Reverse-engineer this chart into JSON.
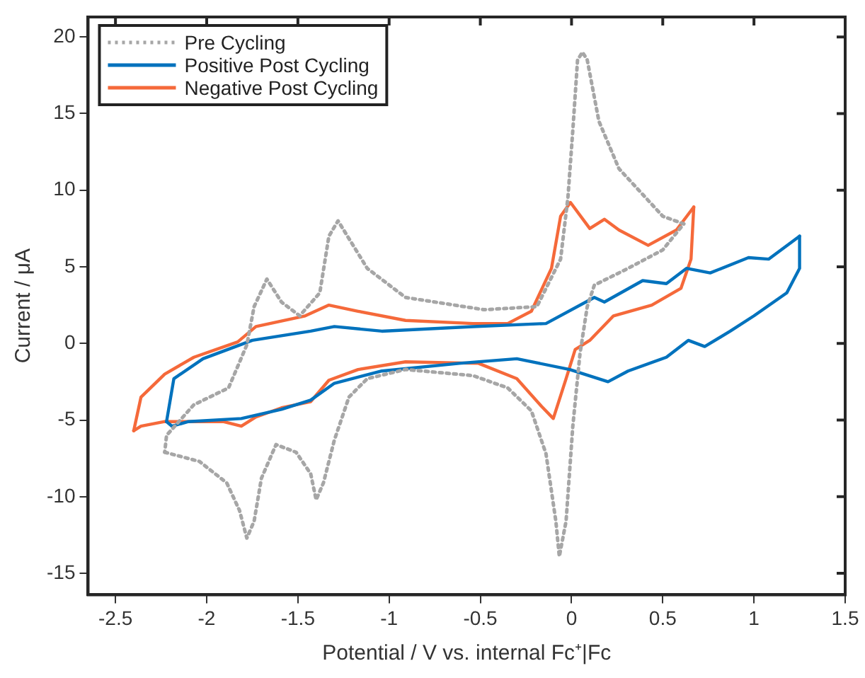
{
  "chart_data": {
    "type": "line",
    "xlabel": "Potential / V vs. internal Fc⁺|Fc",
    "ylabel": "Current / μA",
    "xlim": [
      -2.65,
      1.5
    ],
    "ylim": [
      -16.4,
      21.3
    ],
    "xticks": [
      -2.5,
      -2,
      -1.5,
      -1,
      -0.5,
      0,
      0.5,
      1,
      1.5
    ],
    "yticks": [
      -15,
      -10,
      -5,
      0,
      5,
      10,
      15,
      20
    ],
    "grid": false,
    "legend": "top left",
    "marker": "none",
    "series": [
      {
        "name": "Pre Cycling",
        "color": "#a6a6a6",
        "line_style": "dotted",
        "x": [
          -2.23,
          -2.04,
          -1.89,
          -1.82,
          -1.78,
          -1.74,
          -1.7,
          -1.62,
          -1.51,
          -1.43,
          -1.4,
          -1.36,
          -1.3,
          -1.22,
          -1.12,
          -0.91,
          -0.54,
          -0.35,
          -0.22,
          -0.14,
          -0.086,
          -0.067,
          -0.03,
          0.007,
          0.046,
          0.086,
          0.125,
          0.31,
          0.5,
          0.615
        ],
        "values": [
          -7.1,
          -7.7,
          -9.1,
          -10.9,
          -12.7,
          -11.6,
          -8.8,
          -6.6,
          -7.1,
          -8.5,
          -10.2,
          -9.1,
          -6.3,
          -3.5,
          -2.3,
          -1.7,
          -2.1,
          -2.9,
          -4.4,
          -7.2,
          -11.6,
          -13.9,
          -11.6,
          -5.4,
          -0.7,
          2.4,
          3.8,
          4.9,
          6.1,
          7.8
        ]
      },
      {
        "color": "#a6a6a6",
        "line_style": "dotted",
        "x": [
          0.615,
          0.5,
          0.26,
          0.15,
          0.086,
          0.06,
          0.033,
          0.007,
          -0.02,
          -0.06,
          -0.19,
          -0.48,
          -0.91,
          -1.12,
          -1.28,
          -1.33,
          -1.38,
          -1.49,
          -1.59,
          -1.67,
          -1.74,
          -1.78,
          -1.88,
          -2.07,
          -2.22,
          -2.23
        ],
        "values": [
          7.8,
          8.3,
          11.4,
          14.5,
          18.5,
          19.0,
          18.5,
          13.9,
          9.5,
          5.5,
          2.4,
          2.2,
          3.0,
          4.9,
          8.0,
          7.0,
          3.3,
          1.8,
          2.7,
          4.2,
          2.4,
          -0.1,
          -2.9,
          -4.0,
          -6.0,
          -7.1
        ]
      },
      {
        "name": "Positive Post Cycling",
        "color": "#0072bd",
        "line_style": "solid",
        "x": [
          -2.22,
          -2.18,
          -2.02,
          -1.75,
          -1.43,
          -1.3,
          -1.04,
          -0.54,
          -0.14,
          0.125,
          0.18,
          0.39,
          0.52,
          0.63,
          0.76,
          0.97,
          1.08,
          1.25
        ],
        "values": [
          -5.1,
          -2.3,
          -1.0,
          0.2,
          0.8,
          1.1,
          0.8,
          1.1,
          1.3,
          3.0,
          2.7,
          4.1,
          3.9,
          4.9,
          4.6,
          5.6,
          5.5,
          7.0
        ]
      },
      {
        "color": "#0072bd",
        "line_style": "solid",
        "x": [
          1.25,
          1.25,
          1.18,
          1.0,
          0.87,
          0.73,
          0.64,
          0.52,
          0.31,
          0.2,
          -0.01,
          -0.3,
          -0.615,
          -1.04,
          -1.3,
          -1.43,
          -1.59,
          -1.81,
          -2.1,
          -2.19,
          -2.22
        ],
        "values": [
          7.0,
          4.9,
          3.3,
          1.8,
          0.8,
          -0.2,
          0.2,
          -0.9,
          -1.8,
          -2.5,
          -1.7,
          -1.0,
          -1.3,
          -1.8,
          -2.6,
          -3.7,
          -4.3,
          -4.9,
          -5.1,
          -5.4,
          -5.1
        ]
      },
      {
        "name": "Negative Post Cycling",
        "color": "#f5693a",
        "line_style": "solid",
        "x": [
          -2.4,
          -2.36,
          -2.23,
          -2.07,
          -1.83,
          -1.73,
          -1.46,
          -1.33,
          -1.17,
          -0.91,
          -0.54,
          -0.35,
          -0.22,
          -0.11,
          -0.06,
          -0.006,
          0.1,
          0.18,
          0.26,
          0.42,
          0.575,
          0.67
        ],
        "values": [
          -5.7,
          -3.5,
          -2.0,
          -0.9,
          0.1,
          1.1,
          1.8,
          2.5,
          2.1,
          1.5,
          1.3,
          1.3,
          2.1,
          4.9,
          8.3,
          9.2,
          7.5,
          8.1,
          7.4,
          6.4,
          7.4,
          8.9
        ]
      },
      {
        "color": "#f5693a",
        "line_style": "solid",
        "x": [
          0.67,
          0.655,
          0.6,
          0.44,
          0.23,
          0.1,
          0.02,
          -0.03,
          -0.1,
          -0.165,
          -0.3,
          -0.51,
          -0.91,
          -1.17,
          -1.33,
          -1.43,
          -1.59,
          -1.73,
          -1.81,
          -1.91,
          -2.23,
          -2.36,
          -2.4
        ],
        "values": [
          8.9,
          5.5,
          3.6,
          2.5,
          1.8,
          0.2,
          -0.4,
          -2.3,
          -4.9,
          -4.1,
          -2.3,
          -1.3,
          -1.2,
          -1.7,
          -2.4,
          -3.8,
          -4.2,
          -4.8,
          -5.4,
          -5.1,
          -5.1,
          -5.4,
          -5.7
        ]
      }
    ]
  }
}
